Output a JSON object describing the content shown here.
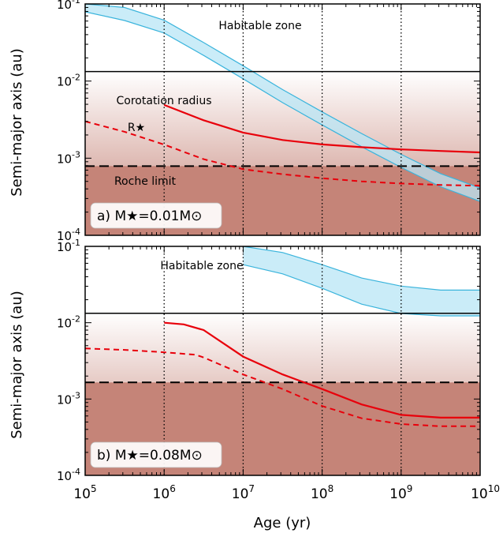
{
  "figure": {
    "ylabel": "Semi-major axis (au)",
    "xlabel": "Age (yr)"
  },
  "colors": {
    "habitable_fill": "#b8e6f5",
    "habitable_edge": "#3ab4dc",
    "rotation": "#e8000b",
    "shade_dark": "#c58478",
    "shade_light": "#ffffff",
    "frame": "#000000"
  },
  "x_ticks": [
    {
      "base": "10",
      "exp": "5"
    },
    {
      "base": "10",
      "exp": "6"
    },
    {
      "base": "10",
      "exp": "7"
    },
    {
      "base": "10",
      "exp": "8"
    },
    {
      "base": "10",
      "exp": "9"
    },
    {
      "base": "10",
      "exp": "10"
    }
  ],
  "y_ticks": [
    {
      "base": "10",
      "exp": "-4"
    },
    {
      "base": "10",
      "exp": "-3"
    },
    {
      "base": "10",
      "exp": "-2"
    },
    {
      "base": "10",
      "exp": "-1"
    }
  ],
  "chart_data": [
    {
      "type": "line",
      "panel": "a",
      "panel_label": "a) M★=0.01M⊙",
      "xscale": "log",
      "yscale": "log",
      "xlim": [
        100000,
        10000000000
      ],
      "ylim": [
        0.0001,
        0.1
      ],
      "vertical_dotted_lines_x": [
        1000000,
        10000000,
        100000000,
        1000000000
      ],
      "annotations": [
        "Habitable zone",
        "Corotation radius",
        "R★",
        "Roche limit"
      ],
      "habitable_zone": {
        "label": "Habitable zone",
        "x": [
          100000,
          316228,
          1000000,
          3162278,
          10000000,
          31622777,
          100000000,
          316227766,
          1000000000,
          3162277660,
          10000000000
        ],
        "outer": [
          0.1,
          0.09,
          0.0616,
          0.0316,
          0.0158,
          0.00775,
          0.00398,
          0.00209,
          0.00112,
          0.00063,
          0.00041
        ],
        "inner": [
          0.079,
          0.061,
          0.042,
          0.0215,
          0.0107,
          0.00525,
          0.0027,
          0.00141,
          0.00076,
          0.000426,
          0.000275
        ]
      },
      "horizontal_line": 0.0133,
      "roche_limit": {
        "label": "Roche limit",
        "y": 0.00079
      },
      "corotation_radius": {
        "label": "Corotation radius",
        "x": [
          1000000,
          3162278,
          10000000,
          31622777,
          100000000,
          316227766,
          1000000000,
          3162277660,
          10000000000
        ],
        "y": [
          0.0049,
          0.0031,
          0.00215,
          0.00172,
          0.00151,
          0.00139,
          0.0013,
          0.00124,
          0.00119
        ]
      },
      "stellar_radius": {
        "label": "R★",
        "x": [
          100000,
          316228,
          1000000,
          3162278,
          10000000,
          31622777,
          100000000,
          316227766,
          1000000000,
          3162277660,
          10000000000
        ],
        "y": [
          0.003,
          0.0022,
          0.0015,
          0.00097,
          0.00072,
          0.00062,
          0.00055,
          0.0005,
          0.00047,
          0.00045,
          0.00044
        ]
      }
    },
    {
      "type": "line",
      "panel": "b",
      "panel_label": "b) M★=0.08M⊙",
      "xscale": "log",
      "yscale": "log",
      "xlim": [
        100000,
        10000000000
      ],
      "ylim": [
        0.0001,
        0.1
      ],
      "vertical_dotted_lines_x": [
        1000000,
        10000000,
        100000000,
        1000000000
      ],
      "annotations": [
        "Habitable zone"
      ],
      "habitable_zone": {
        "label": "Habitable zone",
        "x": [
          10000000,
          31622777,
          100000000,
          316227766,
          1000000000,
          3162277660,
          10000000000
        ],
        "outer": [
          0.1,
          0.083,
          0.0575,
          0.0385,
          0.0302,
          0.0267,
          0.0267
        ],
        "inner": [
          0.0575,
          0.0437,
          0.0282,
          0.0175,
          0.0132,
          0.0123,
          0.0123
        ]
      },
      "horizontal_line": 0.0133,
      "roche_limit": {
        "y": 0.00165
      },
      "corotation_radius": {
        "x": [
          1000000,
          1778279,
          3162278,
          10000000,
          31622777,
          100000000,
          316227766,
          1000000000,
          3162277660,
          10000000000
        ],
        "y": [
          0.01,
          0.0095,
          0.008,
          0.0036,
          0.0021,
          0.00135,
          0.00085,
          0.00062,
          0.00057,
          0.00057
        ]
      },
      "stellar_radius": {
        "x": [
          100000,
          316228,
          1000000,
          2511886,
          3162278,
          10000000,
          31622777,
          100000000,
          316227766,
          1000000000,
          3162277660,
          10000000000
        ],
        "y": [
          0.0046,
          0.0044,
          0.0041,
          0.0038,
          0.0035,
          0.0021,
          0.00135,
          0.00081,
          0.00056,
          0.00047,
          0.00044,
          0.00044
        ]
      }
    }
  ]
}
